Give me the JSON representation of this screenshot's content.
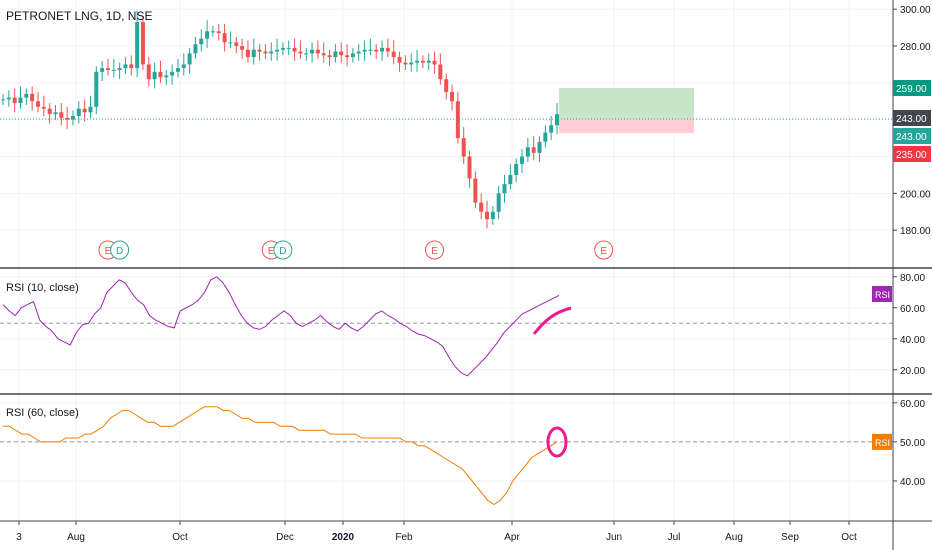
{
  "chart_data": [
    {
      "type": "candlestick",
      "title": "PETRONET LNG, 1D, NSE",
      "ylim": [
        160,
        305
      ],
      "ticks": [
        180,
        200,
        220,
        240,
        260,
        280,
        300
      ],
      "tick_labels": [
        "180.00",
        "200.00",
        "",
        "",
        "",
        "280.00",
        "300.00"
      ],
      "grid": true,
      "close_series": [
        251,
        252,
        249,
        252,
        254,
        250,
        247,
        246,
        243,
        244,
        241,
        240,
        242,
        246,
        244,
        247,
        266,
        268,
        267,
        267,
        268,
        270,
        268,
        293,
        270,
        262,
        266,
        263,
        264,
        266,
        268,
        270,
        276,
        281,
        284,
        288,
        288,
        287,
        282,
        282,
        280,
        278,
        274,
        278,
        277,
        276,
        277,
        278,
        279,
        279,
        277,
        276,
        276,
        278,
        276,
        275,
        274,
        277,
        275,
        274,
        276,
        277,
        278,
        278,
        277,
        279,
        277,
        274,
        271,
        270,
        271,
        272,
        271,
        272,
        270,
        262,
        255,
        250,
        230,
        220,
        208,
        195,
        190,
        186,
        190,
        200,
        205,
        210,
        216,
        220,
        225,
        222,
        228,
        233,
        237,
        243
      ],
      "price_labels": [
        {
          "label": "259.00",
          "value": 259,
          "color": "#089981"
        },
        {
          "label": "243.00",
          "value": 243,
          "color": "#434651"
        },
        {
          "label": "243.00",
          "value": 243,
          "color": "#26a69a"
        },
        {
          "label": "235.00",
          "value": 235,
          "color": "#f23645"
        }
      ],
      "position": {
        "entry": 243,
        "target": 259,
        "stop": 235
      },
      "event_markers": [
        {
          "label": "E",
          "date_index": 18
        },
        {
          "label": "D",
          "date_index": 20
        },
        {
          "label": "E",
          "date_index": 46
        },
        {
          "label": "D",
          "date_index": 48
        },
        {
          "label": "E",
          "date_index": 74
        },
        {
          "label": "E",
          "date_index": 103
        }
      ],
      "colors": {
        "up": "#26a69a",
        "down": "#ef5350",
        "target": "#c8e6c9",
        "stop": "#ffcdd2"
      }
    },
    {
      "type": "line",
      "title": "RSI (10, close)",
      "badge": "RSI",
      "ylim": [
        5,
        85
      ],
      "ticks": [
        20,
        40,
        60,
        80
      ],
      "tick_labels": [
        "20.00",
        "40.00",
        "60.00",
        "80.00"
      ],
      "reference_line": 50,
      "color": "#9c27b0",
      "values": [
        62,
        58,
        55,
        60,
        62,
        64,
        52,
        48,
        45,
        40,
        38,
        36,
        44,
        49,
        50,
        56,
        60,
        70,
        74,
        78,
        76,
        70,
        65,
        62,
        55,
        52,
        50,
        48,
        47,
        58,
        60,
        62,
        65,
        70,
        78,
        80,
        76,
        70,
        62,
        55,
        50,
        47,
        46,
        48,
        52,
        55,
        58,
        55,
        50,
        48,
        50,
        52,
        55,
        51,
        48,
        46,
        50,
        47,
        45,
        48,
        52,
        56,
        58,
        55,
        53,
        50,
        48,
        45,
        43,
        42,
        40,
        38,
        35,
        28,
        22,
        18,
        16,
        20,
        24,
        28,
        33,
        38,
        44,
        48,
        52,
        56,
        58,
        60,
        62,
        64,
        66,
        68
      ],
      "annotation_color": "#e91e8c"
    },
    {
      "type": "line",
      "title": "RSI (60, close)",
      "badge": "RSI",
      "ylim": [
        30,
        62
      ],
      "ticks": [
        40,
        50,
        60
      ],
      "tick_labels": [
        "40.00",
        "50.00",
        "60.00"
      ],
      "reference_line": 50,
      "color": "#f57c00",
      "values": [
        54,
        54,
        53,
        52,
        52,
        51,
        50,
        50,
        50,
        50,
        51,
        51,
        51,
        52,
        52,
        53,
        54,
        56,
        57,
        58,
        58,
        57,
        56,
        55,
        55,
        54,
        54,
        54,
        55,
        56,
        57,
        58,
        59,
        59,
        59,
        58,
        58,
        57,
        56,
        56,
        55,
        55,
        55,
        55,
        54,
        54,
        54,
        53,
        53,
        53,
        53,
        53,
        52,
        52,
        52,
        52,
        52,
        51,
        51,
        51,
        51,
        51,
        51,
        51,
        50,
        50,
        49,
        49,
        48,
        47,
        46,
        45,
        44,
        43,
        41,
        39,
        37,
        35,
        34,
        35,
        37,
        40,
        42,
        44,
        46,
        47,
        48,
        49,
        50
      ],
      "annotation_color": "#e91e8c"
    }
  ],
  "x_axis": {
    "labels": [
      "3",
      "Aug",
      "Oct",
      "Dec",
      "2020",
      "Feb",
      "Apr",
      "Jun",
      "Jul",
      "Aug",
      "Sep",
      "Oct"
    ]
  }
}
